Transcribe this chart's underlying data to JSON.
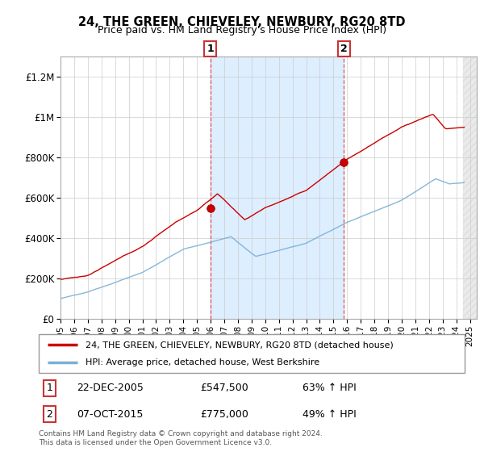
{
  "title": "24, THE GREEN, CHIEVELEY, NEWBURY, RG20 8TD",
  "subtitle": "Price paid vs. HM Land Registry's House Price Index (HPI)",
  "sale1_date": "22-DEC-2005",
  "sale1_price": 547500,
  "sale1_hpi": "63% ↑ HPI",
  "sale2_date": "07-OCT-2015",
  "sale2_price": 775000,
  "sale2_hpi": "49% ↑ HPI",
  "legend_line1": "24, THE GREEN, CHIEVELEY, NEWBURY, RG20 8TD (detached house)",
  "legend_line2": "HPI: Average price, detached house, West Berkshire",
  "footer": "Contains HM Land Registry data © Crown copyright and database right 2024.\nThis data is licensed under the Open Government Licence v3.0.",
  "sale1_x": 2005.97,
  "sale2_x": 2015.77,
  "hpi_color": "#7bafd4",
  "price_color": "#cc0000",
  "sale_marker_color": "#cc0000",
  "shading_color": "#ddeeff",
  "vline_color": "#dd4444",
  "ylim_max": 1300000,
  "xlim_min": 1995,
  "xlim_max": 2025.5,
  "ylabel_ticks": [
    0,
    200000,
    400000,
    600000,
    800000,
    1000000,
    1200000
  ],
  "ylabel_labels": [
    "£0",
    "£200K",
    "£400K",
    "£600K",
    "£800K",
    "£1M",
    "£1.2M"
  ]
}
